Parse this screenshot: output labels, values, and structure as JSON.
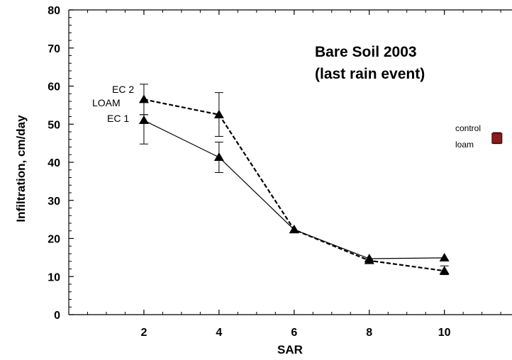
{
  "chart_data": {
    "type": "line",
    "title": "Bare Soil 2003",
    "subtitle": "(last rain event)",
    "xlabel": "SAR",
    "ylabel": "Infiltration, cm/day",
    "xlim": [
      0,
      11.8
    ],
    "ylim": [
      0,
      80
    ],
    "x_ticks": [
      2,
      4,
      6,
      8,
      10
    ],
    "y_ticks": [
      0,
      10,
      20,
      30,
      40,
      50,
      60,
      70,
      80
    ],
    "grid": false,
    "legend": "none",
    "series": [
      {
        "name": "EC 1",
        "line_style": "solid",
        "marker": "triangle",
        "color": "#000000",
        "points": [
          {
            "x": 2,
            "y": 51,
            "err_low": 44.8,
            "err_high": 52.5
          },
          {
            "x": 4,
            "y": 41.3,
            "err_low": 37.3,
            "err_high": 45.3
          },
          {
            "x": 6,
            "y": 22.3
          },
          {
            "x": 8,
            "y": 14.7
          },
          {
            "x": 10,
            "y": 14.9
          }
        ]
      },
      {
        "name": "EC 2",
        "line_style": "dashed",
        "marker": "triangle",
        "color": "#000000",
        "points": [
          {
            "x": 2,
            "y": 56.5,
            "err_low": 52.5,
            "err_high": 60.5
          },
          {
            "x": 4,
            "y": 52.5,
            "err_low": 46.8,
            "err_high": 58.3
          },
          {
            "x": 6,
            "y": 22.3
          },
          {
            "x": 8,
            "y": 14.2
          },
          {
            "x": 10,
            "y": 11.5,
            "err_low": 10.5,
            "err_high": 12.8
          }
        ]
      },
      {
        "name": "control loam",
        "marker": "square",
        "color": "#8b1a1a",
        "points": [
          {
            "x": 11.4,
            "y": 46.3,
            "err_low": 44.9,
            "err_high": 47.8
          }
        ]
      }
    ],
    "annotations": {
      "ec2": "EC 2",
      "loam": "LOAM",
      "ec1": "EC 1",
      "control": "control",
      "control_loam": "loam"
    }
  }
}
